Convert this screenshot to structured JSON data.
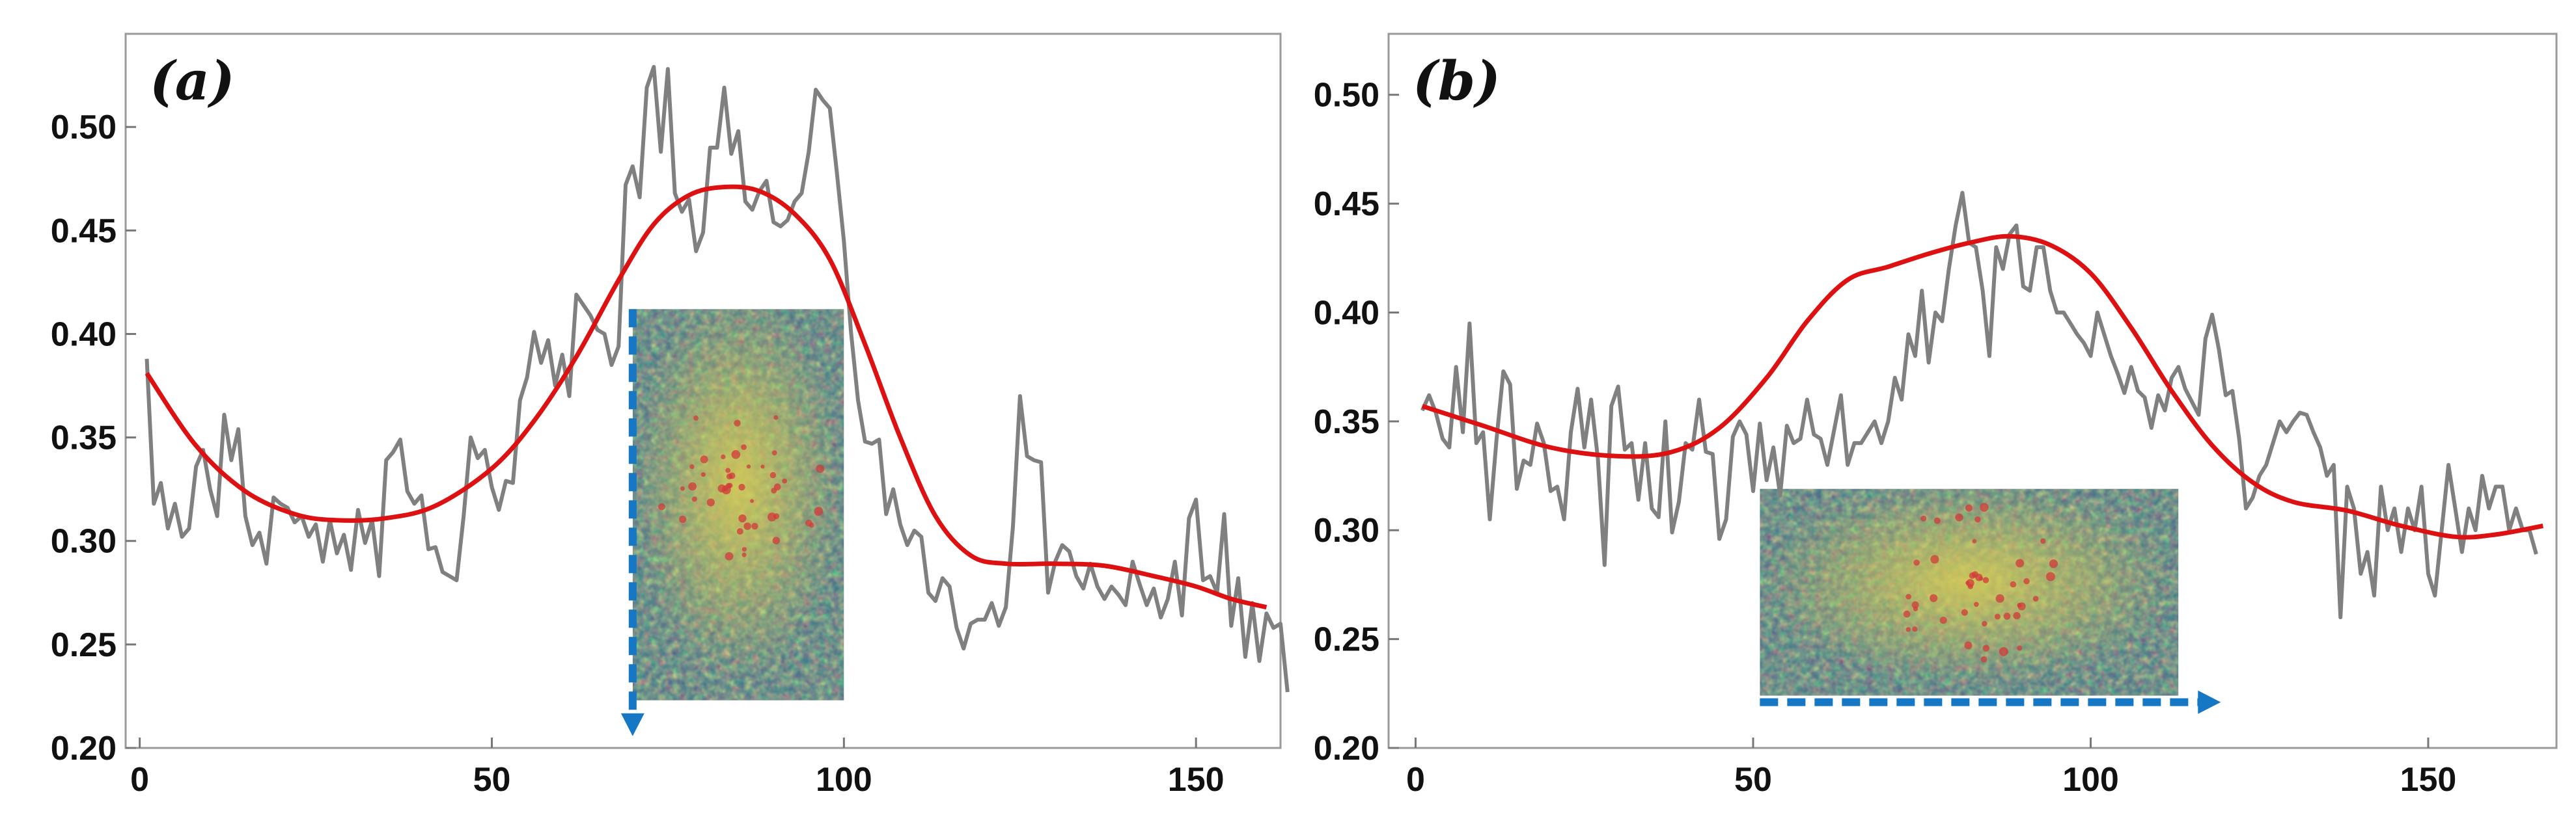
{
  "colors": {
    "raw_series": "#808080",
    "smooth_series": "#dd1111",
    "arrow": "#1677c4",
    "frame": "#9a9a9a",
    "inset_green": "#4f8a3c",
    "inset_yellow": "#d8cc55",
    "inset_blue": "#3f6f8a",
    "inset_red": "#d23a3a"
  },
  "chart_data": [
    {
      "type": "line",
      "panel_label": "(a)",
      "title": "",
      "xlabel": "",
      "ylabel": "",
      "xlim": [
        -2,
        162
      ],
      "ylim": [
        0.2,
        0.545
      ],
      "x_ticks": [
        0,
        50,
        100,
        150
      ],
      "x_tick_labels": [
        "0",
        "50",
        "100",
        "150"
      ],
      "y_ticks": [
        0.2,
        0.25,
        0.3,
        0.35,
        0.4,
        0.45,
        0.5
      ],
      "y_tick_labels": [
        "0.20",
        "0.25",
        "0.30",
        "0.35",
        "0.40",
        "0.45",
        "0.50"
      ],
      "grid": false,
      "series": [
        {
          "style": "raw",
          "x_start": 1,
          "x_step": 1,
          "values": [
            0.388,
            0.318,
            0.328,
            0.306,
            0.318,
            0.302,
            0.306,
            0.336,
            0.344,
            0.325,
            0.312,
            0.361,
            0.339,
            0.354,
            0.312,
            0.298,
            0.304,
            0.289,
            0.321,
            0.318,
            0.316,
            0.309,
            0.312,
            0.302,
            0.308,
            0.29,
            0.31,
            0.294,
            0.303,
            0.286,
            0.315,
            0.299,
            0.31,
            0.283,
            0.339,
            0.343,
            0.349,
            0.324,
            0.318,
            0.322,
            0.296,
            0.297,
            0.285,
            0.283,
            0.281,
            0.312,
            0.35,
            0.34,
            0.344,
            0.326,
            0.315,
            0.329,
            0.328,
            0.368,
            0.379,
            0.401,
            0.386,
            0.397,
            0.375,
            0.39,
            0.37,
            0.419,
            0.414,
            0.409,
            0.402,
            0.4,
            0.385,
            0.394,
            0.472,
            0.481,
            0.466,
            0.519,
            0.529,
            0.488,
            0.528,
            0.468,
            0.459,
            0.465,
            0.44,
            0.449,
            0.49,
            0.49,
            0.519,
            0.487,
            0.498,
            0.464,
            0.46,
            0.469,
            0.474,
            0.454,
            0.452,
            0.455,
            0.464,
            0.468,
            0.488,
            0.518,
            0.513,
            0.509,
            0.478,
            0.445,
            0.401,
            0.368,
            0.348,
            0.347,
            0.349,
            0.313,
            0.325,
            0.308,
            0.298,
            0.305,
            0.302,
            0.275,
            0.271,
            0.282,
            0.278,
            0.258,
            0.248,
            0.26,
            0.262,
            0.262,
            0.27,
            0.259,
            0.268,
            0.307,
            0.37,
            0.341,
            0.339,
            0.338,
            0.275,
            0.29,
            0.298,
            0.295,
            0.283,
            0.277,
            0.289,
            0.278,
            0.272,
            0.278,
            0.274,
            0.269,
            0.29,
            0.279,
            0.269,
            0.277,
            0.263,
            0.272,
            0.29,
            0.264,
            0.311,
            0.32,
            0.281,
            0.283,
            0.275,
            0.313,
            0.259,
            0.282,
            0.244,
            0.27,
            0.242,
            0.265,
            0.258,
            0.26,
            0.227
          ]
        },
        {
          "style": "smooth",
          "x": [
            1,
            8,
            15,
            22,
            28,
            35,
            42,
            50,
            56,
            62,
            68,
            73,
            78,
            83,
            88,
            93,
            98,
            103,
            108,
            113,
            118,
            123,
            130,
            137,
            144,
            150,
            155,
            160
          ],
          "values": [
            0.381,
            0.346,
            0.324,
            0.313,
            0.31,
            0.311,
            0.317,
            0.335,
            0.358,
            0.389,
            0.426,
            0.453,
            0.467,
            0.471,
            0.469,
            0.458,
            0.436,
            0.395,
            0.35,
            0.312,
            0.293,
            0.289,
            0.289,
            0.288,
            0.283,
            0.278,
            0.272,
            0.268
          ]
        }
      ],
      "inset": {
        "arrow_direction": "down",
        "x_range": [
          70,
          100
        ],
        "y_range": [
          0.223,
          0.412
        ],
        "hotspot": {
          "x": 0.5,
          "y": 0.45
        }
      }
    },
    {
      "type": "line",
      "panel_label": "(b)",
      "title": "",
      "xlabel": "",
      "ylabel": "",
      "xlim": [
        -4,
        169
      ],
      "ylim": [
        0.2,
        0.528
      ],
      "x_ticks": [
        0,
        50,
        100,
        150
      ],
      "x_tick_labels": [
        "0",
        "50",
        "100",
        "150"
      ],
      "y_ticks": [
        0.2,
        0.25,
        0.3,
        0.35,
        0.4,
        0.45,
        0.5
      ],
      "y_tick_labels": [
        "0.20",
        "0.25",
        "0.30",
        "0.35",
        "0.40",
        "0.45",
        "0.50"
      ],
      "grid": false,
      "series": [
        {
          "style": "raw",
          "x_start": 1,
          "x_step": 1,
          "values": [
            0.355,
            0.362,
            0.354,
            0.342,
            0.338,
            0.375,
            0.345,
            0.395,
            0.34,
            0.345,
            0.305,
            0.342,
            0.373,
            0.367,
            0.319,
            0.332,
            0.33,
            0.349,
            0.34,
            0.318,
            0.32,
            0.305,
            0.345,
            0.365,
            0.338,
            0.36,
            0.333,
            0.284,
            0.357,
            0.366,
            0.337,
            0.34,
            0.314,
            0.34,
            0.31,
            0.306,
            0.35,
            0.299,
            0.313,
            0.34,
            0.337,
            0.36,
            0.336,
            0.335,
            0.296,
            0.305,
            0.343,
            0.35,
            0.344,
            0.318,
            0.349,
            0.323,
            0.338,
            0.316,
            0.348,
            0.34,
            0.342,
            0.36,
            0.344,
            0.342,
            0.33,
            0.346,
            0.362,
            0.33,
            0.34,
            0.34,
            0.345,
            0.35,
            0.34,
            0.35,
            0.37,
            0.36,
            0.39,
            0.38,
            0.41,
            0.377,
            0.4,
            0.396,
            0.42,
            0.44,
            0.455,
            0.432,
            0.43,
            0.41,
            0.38,
            0.43,
            0.42,
            0.436,
            0.44,
            0.412,
            0.41,
            0.43,
            0.43,
            0.41,
            0.4,
            0.4,
            0.395,
            0.39,
            0.386,
            0.38,
            0.4,
            0.39,
            0.38,
            0.372,
            0.363,
            0.375,
            0.364,
            0.361,
            0.347,
            0.362,
            0.355,
            0.37,
            0.375,
            0.365,
            0.359,
            0.353,
            0.388,
            0.399,
            0.383,
            0.362,
            0.364,
            0.342,
            0.31,
            0.315,
            0.325,
            0.33,
            0.34,
            0.35,
            0.345,
            0.35,
            0.354,
            0.353,
            0.345,
            0.338,
            0.325,
            0.33,
            0.26,
            0.32,
            0.31,
            0.28,
            0.29,
            0.27,
            0.32,
            0.3,
            0.31,
            0.29,
            0.31,
            0.3,
            0.32,
            0.28,
            0.27,
            0.3,
            0.33,
            0.31,
            0.29,
            0.31,
            0.3,
            0.325,
            0.31,
            0.32,
            0.32,
            0.3,
            0.31,
            0.3,
            0.3,
            0.289
          ]
        },
        {
          "style": "smooth",
          "x": [
            1,
            10,
            20,
            30,
            38,
            45,
            52,
            58,
            64,
            70,
            76,
            82,
            88,
            94,
            100,
            106,
            112,
            118,
            124,
            130,
            138,
            146,
            154,
            160,
            167
          ],
          "values": [
            0.357,
            0.348,
            0.338,
            0.334,
            0.336,
            0.347,
            0.37,
            0.396,
            0.415,
            0.421,
            0.427,
            0.432,
            0.435,
            0.431,
            0.418,
            0.393,
            0.364,
            0.339,
            0.322,
            0.313,
            0.309,
            0.302,
            0.297,
            0.298,
            0.302
          ]
        }
      ],
      "inset": {
        "arrow_direction": "right",
        "x_range": [
          51,
          113
        ],
        "y_range": [
          0.224,
          0.319
        ],
        "hotspot": {
          "x": 0.5,
          "y": 0.45
        }
      }
    }
  ]
}
